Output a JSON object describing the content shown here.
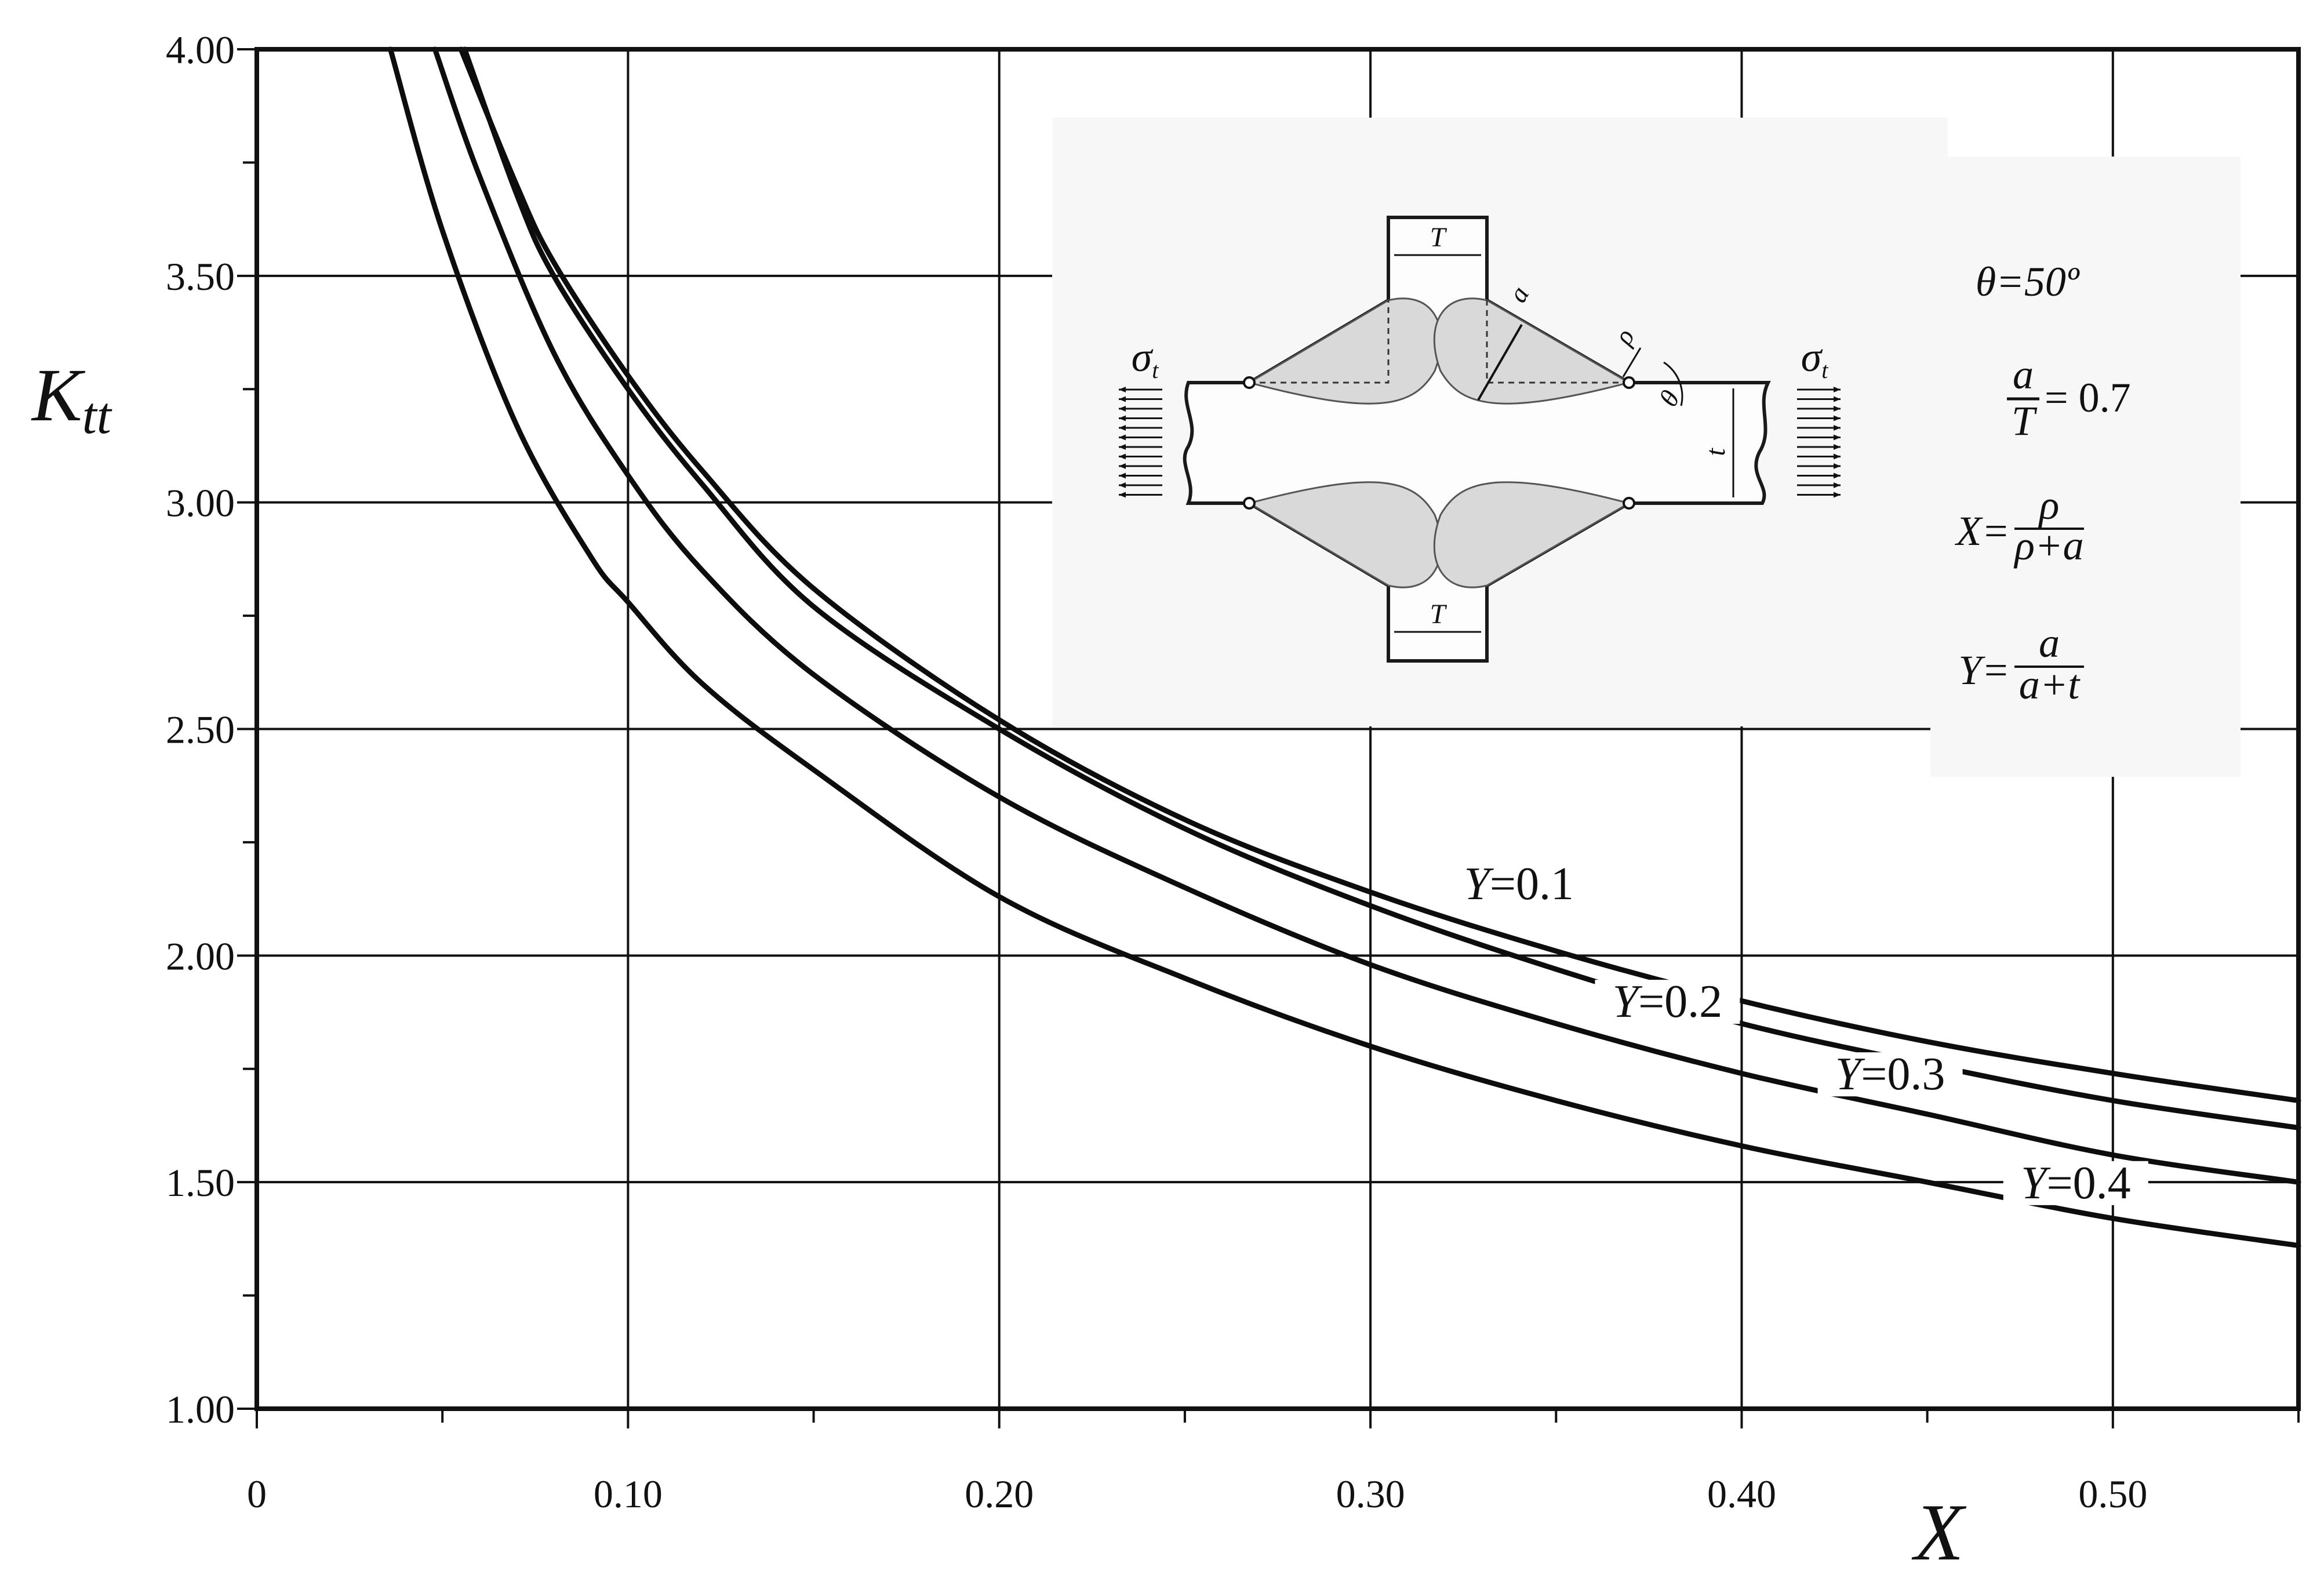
{
  "chart_data": {
    "type": "line",
    "xlabel": "X",
    "ylabel": "K",
    "ylabel_sub": "tt",
    "xlim": [
      0,
      0.55
    ],
    "ylim": [
      1.0,
      4.0
    ],
    "grid": true,
    "x_ticks": [
      "0",
      "0.10",
      "0.20",
      "0.30",
      "0.40",
      "0.50"
    ],
    "y_ticks": [
      "1.00",
      "1.50",
      "2.00",
      "2.50",
      "3.00",
      "3.50",
      "4.00"
    ],
    "x_tick_values": [
      0,
      0.1,
      0.2,
      0.3,
      0.4,
      0.5
    ],
    "y_tick_values": [
      1.0,
      1.5,
      2.0,
      2.5,
      3.0,
      3.5,
      4.0
    ],
    "series": [
      {
        "name": "Y=0.1",
        "x": [
          0.055,
          0.07,
          0.08,
          0.1,
          0.12,
          0.15,
          0.2,
          0.25,
          0.3,
          0.35,
          0.4,
          0.45,
          0.5,
          0.55
        ],
        "y": [
          4.0,
          3.7,
          3.53,
          3.28,
          3.07,
          2.81,
          2.52,
          2.3,
          2.14,
          2.01,
          1.9,
          1.81,
          1.74,
          1.68
        ]
      },
      {
        "name": "Y=0.2",
        "x": [
          0.056,
          0.07,
          0.08,
          0.1,
          0.12,
          0.15,
          0.2,
          0.25,
          0.3,
          0.35,
          0.4,
          0.45,
          0.5,
          0.55
        ],
        "y": [
          4.0,
          3.68,
          3.5,
          3.25,
          3.04,
          2.77,
          2.5,
          2.28,
          2.11,
          1.97,
          1.85,
          1.76,
          1.68,
          1.62
        ]
      },
      {
        "name": "Y=0.3",
        "x": [
          0.048,
          0.06,
          0.08,
          0.1,
          0.12,
          0.15,
          0.2,
          0.25,
          0.3,
          0.35,
          0.4,
          0.45,
          0.5,
          0.55
        ],
        "y": [
          4.0,
          3.72,
          3.33,
          3.06,
          2.85,
          2.62,
          2.35,
          2.15,
          1.98,
          1.85,
          1.74,
          1.65,
          1.56,
          1.5
        ]
      },
      {
        "name": "Y=0.4",
        "x": [
          0.036,
          0.05,
          0.07,
          0.09,
          0.1,
          0.12,
          0.15,
          0.2,
          0.25,
          0.3,
          0.35,
          0.4,
          0.45,
          0.5,
          0.55
        ],
        "y": [
          4.0,
          3.6,
          3.17,
          2.88,
          2.78,
          2.6,
          2.41,
          2.13,
          1.95,
          1.8,
          1.68,
          1.58,
          1.5,
          1.42,
          1.36
        ]
      }
    ],
    "curve_labels": [
      {
        "text": "Y=0.1",
        "x": 0.34,
        "y": 2.14
      },
      {
        "text": "Y=0.2",
        "x": 0.38,
        "y": 1.88
      },
      {
        "text": "Y=0.3",
        "x": 0.44,
        "y": 1.72
      },
      {
        "text": "Y=0.4",
        "x": 0.49,
        "y": 1.48
      }
    ]
  },
  "inset": {
    "theta_label": "θ=50º",
    "a_over_T": "= 0.7",
    "x_definition": "X=",
    "y_definition": "Y=",
    "frac_a": "a",
    "frac_T": "T",
    "frac_rho": "ρ",
    "frac_rho_plus_a": "ρ+a",
    "frac_a_plus_t": "a+t",
    "sigma": "σ",
    "sigma_sub": "t",
    "dim_T": "T",
    "dim_t": "t",
    "dim_a": "a",
    "dim_rho": "ρ",
    "dim_theta": "θ"
  }
}
